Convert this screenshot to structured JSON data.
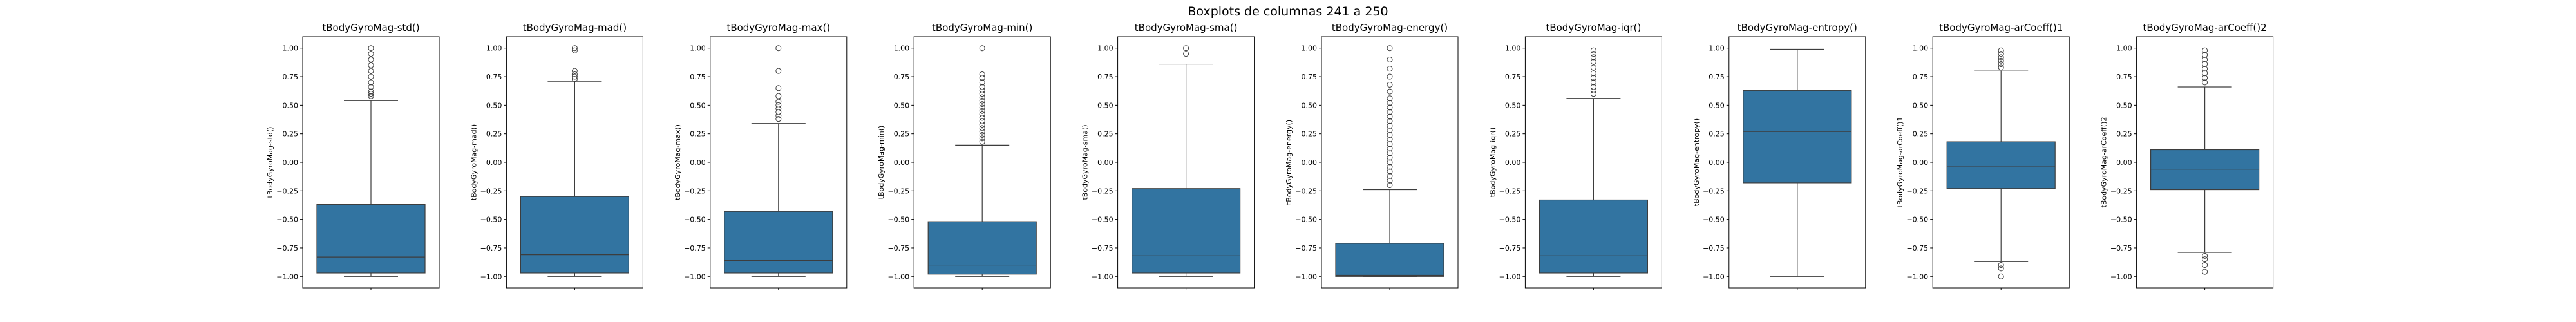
{
  "figure": {
    "suptitle": "Boxplots de columnas 241 a 250"
  },
  "colors": {
    "box_fill": "#3274a1",
    "line": "#3d3d3d",
    "flier_edge": "#3d3d3d"
  },
  "chart_data": [
    {
      "type": "box",
      "title": "tBodyGyroMag-std()",
      "ylabel": "tBodyGyroMag-std()",
      "ylim": [
        -1.1,
        1.1
      ],
      "yticks": [
        "1.00",
        "0.75",
        "0.50",
        "0.25",
        "0.00",
        "−0.25",
        "−0.50",
        "−0.75",
        "−1.00"
      ],
      "whisker_low": -1.0,
      "q1": -0.97,
      "median": -0.83,
      "q3": -0.37,
      "whisker_high": 0.54,
      "outliers_high": [
        0.58,
        0.6,
        0.62,
        0.66,
        0.7,
        0.75,
        0.8,
        0.85,
        0.9,
        0.95,
        1.0
      ],
      "outliers_low": []
    },
    {
      "type": "box",
      "title": "tBodyGyroMag-mad()",
      "ylabel": "tBodyGyroMag-mad()",
      "ylim": [
        -1.1,
        1.1
      ],
      "yticks": [
        "1.00",
        "0.75",
        "0.50",
        "0.25",
        "0.00",
        "−0.25",
        "−0.50",
        "−0.75",
        "−1.00"
      ],
      "whisker_low": -1.0,
      "q1": -0.97,
      "median": -0.81,
      "q3": -0.3,
      "whisker_high": 0.71,
      "outliers_high": [
        0.73,
        0.75,
        0.77,
        0.8,
        0.98,
        1.0
      ],
      "outliers_low": []
    },
    {
      "type": "box",
      "title": "tBodyGyroMag-max()",
      "ylabel": "tBodyGyroMag-max()",
      "ylim": [
        -1.1,
        1.1
      ],
      "yticks": [
        "1.00",
        "0.75",
        "0.50",
        "0.25",
        "0.00",
        "−0.25",
        "−0.50",
        "−0.75",
        "−1.00"
      ],
      "whisker_low": -1.0,
      "q1": -0.97,
      "median": -0.86,
      "q3": -0.43,
      "whisker_high": 0.34,
      "outliers_high": [
        0.38,
        0.41,
        0.44,
        0.47,
        0.5,
        0.53,
        0.58,
        0.65,
        0.8,
        1.0
      ],
      "outliers_low": []
    },
    {
      "type": "box",
      "title": "tBodyGyroMag-min()",
      "ylabel": "tBodyGyroMag-min()",
      "ylim": [
        -1.1,
        1.1
      ],
      "yticks": [
        "1.00",
        "0.75",
        "0.50",
        "0.25",
        "0.00",
        "−0.25",
        "−0.50",
        "−0.75",
        "−1.00"
      ],
      "whisker_low": -1.0,
      "q1": -0.98,
      "median": -0.9,
      "q3": -0.52,
      "whisker_high": 0.15,
      "outliers_high": [
        0.18,
        0.21,
        0.24,
        0.27,
        0.3,
        0.33,
        0.36,
        0.39,
        0.42,
        0.45,
        0.48,
        0.51,
        0.54,
        0.57,
        0.6,
        0.63,
        0.66,
        0.7,
        0.74,
        0.77,
        1.0
      ],
      "outliers_low": []
    },
    {
      "type": "box",
      "title": "tBodyGyroMag-sma()",
      "ylabel": "tBodyGyroMag-sma()",
      "ylim": [
        -1.1,
        1.1
      ],
      "yticks": [
        "1.00",
        "0.75",
        "0.50",
        "0.25",
        "0.00",
        "−0.25",
        "−0.50",
        "−0.75",
        "−1.00"
      ],
      "whisker_low": -1.0,
      "q1": -0.97,
      "median": -0.82,
      "q3": -0.23,
      "whisker_high": 0.86,
      "outliers_high": [
        0.95,
        1.0
      ],
      "outliers_low": []
    },
    {
      "type": "box",
      "title": "tBodyGyroMag-energy()",
      "ylabel": "tBodyGyroMag-energy()",
      "ylim": [
        -1.1,
        1.1
      ],
      "yticks": [
        "1.00",
        "0.75",
        "0.50",
        "0.25",
        "0.00",
        "−0.25",
        "−0.50",
        "−0.75",
        "−1.00"
      ],
      "whisker_low": -1.0,
      "q1": -1.0,
      "median": -0.99,
      "q3": -0.71,
      "whisker_high": -0.24,
      "outliers_high": [
        -0.2,
        -0.16,
        -0.12,
        -0.08,
        -0.04,
        0.0,
        0.04,
        0.08,
        0.12,
        0.16,
        0.2,
        0.24,
        0.28,
        0.32,
        0.36,
        0.4,
        0.44,
        0.48,
        0.52,
        0.56,
        0.62,
        0.68,
        0.75,
        0.82,
        0.9,
        1.0
      ],
      "outliers_low": []
    },
    {
      "type": "box",
      "title": "tBodyGyroMag-iqr()",
      "ylabel": "tBodyGyroMag-iqr()",
      "ylim": [
        -1.1,
        1.1
      ],
      "yticks": [
        "1.00",
        "0.75",
        "0.50",
        "0.25",
        "0.00",
        "−0.25",
        "−0.50",
        "−0.75",
        "−1.00"
      ],
      "whisker_low": -1.0,
      "q1": -0.97,
      "median": -0.82,
      "q3": -0.33,
      "whisker_high": 0.56,
      "outliers_high": [
        0.6,
        0.63,
        0.66,
        0.7,
        0.74,
        0.78,
        0.83,
        0.88,
        0.92,
        0.95,
        0.98
      ],
      "outliers_low": []
    },
    {
      "type": "box",
      "title": "tBodyGyroMag-entropy()",
      "ylabel": "tBodyGyroMag-entropy()",
      "ylim": [
        -1.1,
        1.1
      ],
      "yticks": [
        "1.00",
        "0.75",
        "0.50",
        "0.25",
        "0.00",
        "−0.25",
        "−0.50",
        "−0.75",
        "−1.00"
      ],
      "whisker_low": -1.0,
      "q1": -0.18,
      "median": 0.27,
      "q3": 0.63,
      "whisker_high": 0.99,
      "outliers_high": [],
      "outliers_low": []
    },
    {
      "type": "box",
      "title": "tBodyGyroMag-arCoeff()1",
      "ylabel": "tBodyGyroMag-arCoeff()1",
      "ylim": [
        -1.1,
        1.1
      ],
      "yticks": [
        "1.00",
        "0.75",
        "0.50",
        "0.25",
        "0.00",
        "−0.25",
        "−0.50",
        "−0.75",
        "−1.00"
      ],
      "whisker_low": -0.87,
      "q1": -0.23,
      "median": -0.04,
      "q3": 0.18,
      "whisker_high": 0.8,
      "outliers_high": [
        0.83,
        0.86,
        0.89,
        0.92,
        0.95,
        0.98
      ],
      "outliers_low": [
        -0.9,
        -0.93,
        -1.0
      ]
    },
    {
      "type": "box",
      "title": "tBodyGyroMag-arCoeff()2",
      "ylabel": "tBodyGyroMag-arCoeff()2",
      "ylim": [
        -1.1,
        1.1
      ],
      "yticks": [
        "1.00",
        "0.75",
        "0.50",
        "0.25",
        "0.00",
        "−0.25",
        "−0.50",
        "−0.75",
        "−1.00"
      ],
      "whisker_low": -0.79,
      "q1": -0.24,
      "median": -0.06,
      "q3": 0.11,
      "whisker_high": 0.66,
      "outliers_high": [
        0.7,
        0.74,
        0.78,
        0.82,
        0.86,
        0.9,
        0.94,
        0.98
      ],
      "outliers_low": [
        -0.82,
        -0.85,
        -0.9,
        -0.96
      ]
    }
  ]
}
